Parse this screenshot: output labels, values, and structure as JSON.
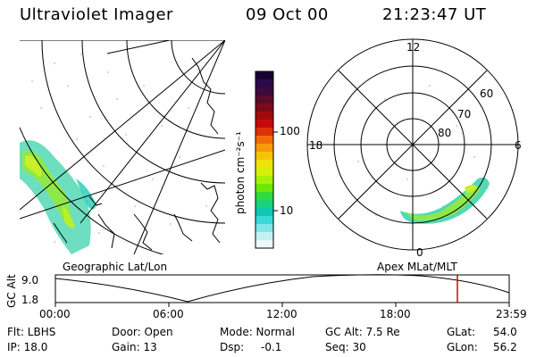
{
  "header": {
    "title": "Ultraviolet Imager",
    "date": "09 Oct 00",
    "time": "21:23:47 UT"
  },
  "left_panel": {
    "caption": "Geographic Lat/Lon"
  },
  "colorbar": {
    "unit_label": "photon cm⁻²s⁻¹",
    "tick_labels": [
      "100",
      "10"
    ],
    "colors": [
      "#1a0033",
      "#2a0a4a",
      "#3b0b3b",
      "#5a0a2a",
      "#7a0a1a",
      "#9e0b0b",
      "#c40a0a",
      "#e0300a",
      "#f26b0a",
      "#f79a0a",
      "#f7c20a",
      "#f1e10a",
      "#d6f00a",
      "#a8f00a",
      "#6ee80a",
      "#2fdc3a",
      "#18d27c",
      "#10c8b0",
      "#3bd8d8",
      "#7ee6e6",
      "#c4f0f0",
      "#eafafa"
    ]
  },
  "right_panel": {
    "caption": "Apex MLat/MLT",
    "mlt_labels": {
      "top": "12",
      "left": "18",
      "right": "6",
      "bottom": "0"
    },
    "lat_labels": [
      "60",
      "70",
      "80"
    ]
  },
  "timeline": {
    "axis_title": "GC Alt",
    "y_top": "9.0",
    "y_bottom": "1.8",
    "x_ticks": [
      "00:00",
      "06:00",
      "12:00",
      "18:00",
      "23:59"
    ],
    "marker_color": "#e00000"
  },
  "footer": {
    "row1": [
      {
        "label": "Flt: LBHS"
      },
      {
        "label": "Door: Open"
      },
      {
        "label": "Mode: Normal"
      },
      {
        "label": "GC Alt: 7.5 Re"
      },
      {
        "label": "GLat:",
        "value": "54.0"
      }
    ],
    "row2": [
      {
        "label": "IP: 18.0"
      },
      {
        "label": "Gain: 13"
      },
      {
        "label": "Dsp:",
        "value": "-0.1"
      },
      {
        "label": "Seq: 30"
      },
      {
        "label": "GLon:",
        "value": "56.2"
      }
    ]
  }
}
